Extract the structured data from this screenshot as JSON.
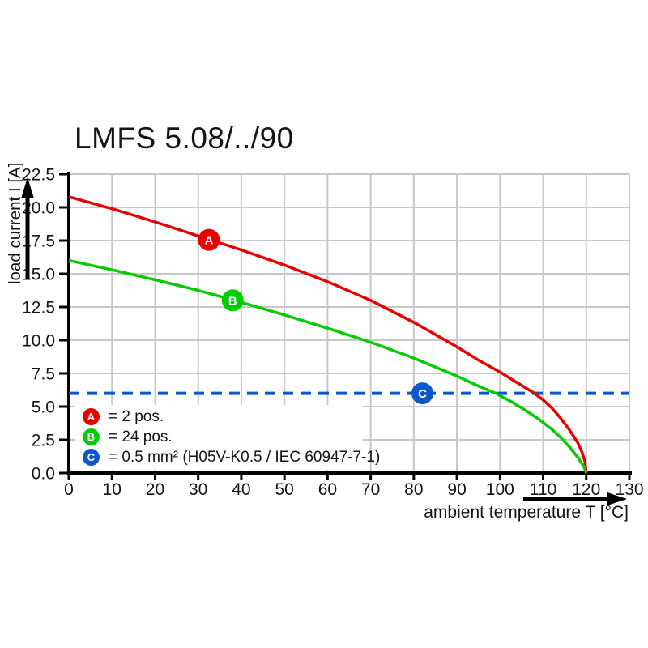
{
  "page": {
    "title": "LMFS 5.08/../90"
  },
  "colors": {
    "grid": "#c8c8c8",
    "axis": "#000000",
    "background": "#ffffff",
    "marker_text": "#ffffff"
  },
  "chart_data": {
    "type": "line",
    "title": "LMFS 5.08/../90",
    "xlabel": "ambient temperature T [°C]",
    "ylabel": "load current I [A]",
    "xlim": [
      0,
      130
    ],
    "ylim": [
      0,
      22.5
    ],
    "xticks": [
      0,
      10,
      20,
      30,
      40,
      50,
      60,
      70,
      80,
      90,
      100,
      110,
      120,
      130
    ],
    "xtick_labels": [
      "0",
      "10",
      "20",
      "30",
      "40",
      "50",
      "60",
      "70",
      "80",
      "90",
      "100",
      "110",
      "120",
      "130"
    ],
    "yticks": [
      0,
      2.5,
      5,
      7.5,
      10,
      12.5,
      15,
      17.5,
      20,
      22.5
    ],
    "ytick_labels": [
      "0.0",
      "2.5",
      "5.0",
      "7.5",
      "10.0",
      "12.5",
      "15.0",
      "17.5",
      "20.0",
      "22.5"
    ],
    "grid": true,
    "legend_position": "bottom-left-inside",
    "series": [
      {
        "name": "A",
        "label": "= 2 pos.",
        "color": "#e60000",
        "style": "solid",
        "marker": {
          "letter": "A",
          "x": 32.5,
          "y": 17.55
        },
        "points": [
          [
            0,
            20.8
          ],
          [
            10,
            19.9
          ],
          [
            20,
            18.9
          ],
          [
            30,
            17.85
          ],
          [
            40,
            16.8
          ],
          [
            50,
            15.65
          ],
          [
            60,
            14.4
          ],
          [
            70,
            13.0
          ],
          [
            80,
            11.35
          ],
          [
            90,
            9.5
          ],
          [
            95,
            8.5
          ],
          [
            100,
            7.6
          ],
          [
            105,
            6.6
          ],
          [
            108,
            6.0
          ],
          [
            110,
            5.5
          ],
          [
            112,
            4.9
          ],
          [
            114,
            4.15
          ],
          [
            116,
            3.3
          ],
          [
            118,
            2.3
          ],
          [
            119,
            1.6
          ],
          [
            119.7,
            0.85
          ],
          [
            120,
            0
          ]
        ]
      },
      {
        "name": "B",
        "label": "= 24 pos.",
        "color": "#00cc00",
        "style": "solid",
        "marker": {
          "letter": "B",
          "x": 38,
          "y": 13.0
        },
        "points": [
          [
            0,
            16.0
          ],
          [
            10,
            15.3
          ],
          [
            20,
            14.55
          ],
          [
            30,
            13.75
          ],
          [
            40,
            12.85
          ],
          [
            50,
            11.9
          ],
          [
            60,
            10.9
          ],
          [
            70,
            9.85
          ],
          [
            80,
            8.65
          ],
          [
            90,
            7.3
          ],
          [
            95,
            6.55
          ],
          [
            99,
            6.0
          ],
          [
            103,
            5.3
          ],
          [
            106,
            4.7
          ],
          [
            109,
            4.05
          ],
          [
            112,
            3.3
          ],
          [
            114,
            2.7
          ],
          [
            116,
            2.0
          ],
          [
            118,
            1.2
          ],
          [
            119.5,
            0.45
          ],
          [
            120,
            0
          ]
        ]
      },
      {
        "name": "C",
        "label": "= 0.5 mm² (H05V-K0.5 / IEC 60947-7-1)",
        "color": "#0d57c8",
        "style": "dashed",
        "marker": {
          "letter": "C",
          "x": 82,
          "y": 6.0
        },
        "points": [
          [
            0,
            6
          ],
          [
            130,
            6
          ]
        ]
      }
    ]
  }
}
